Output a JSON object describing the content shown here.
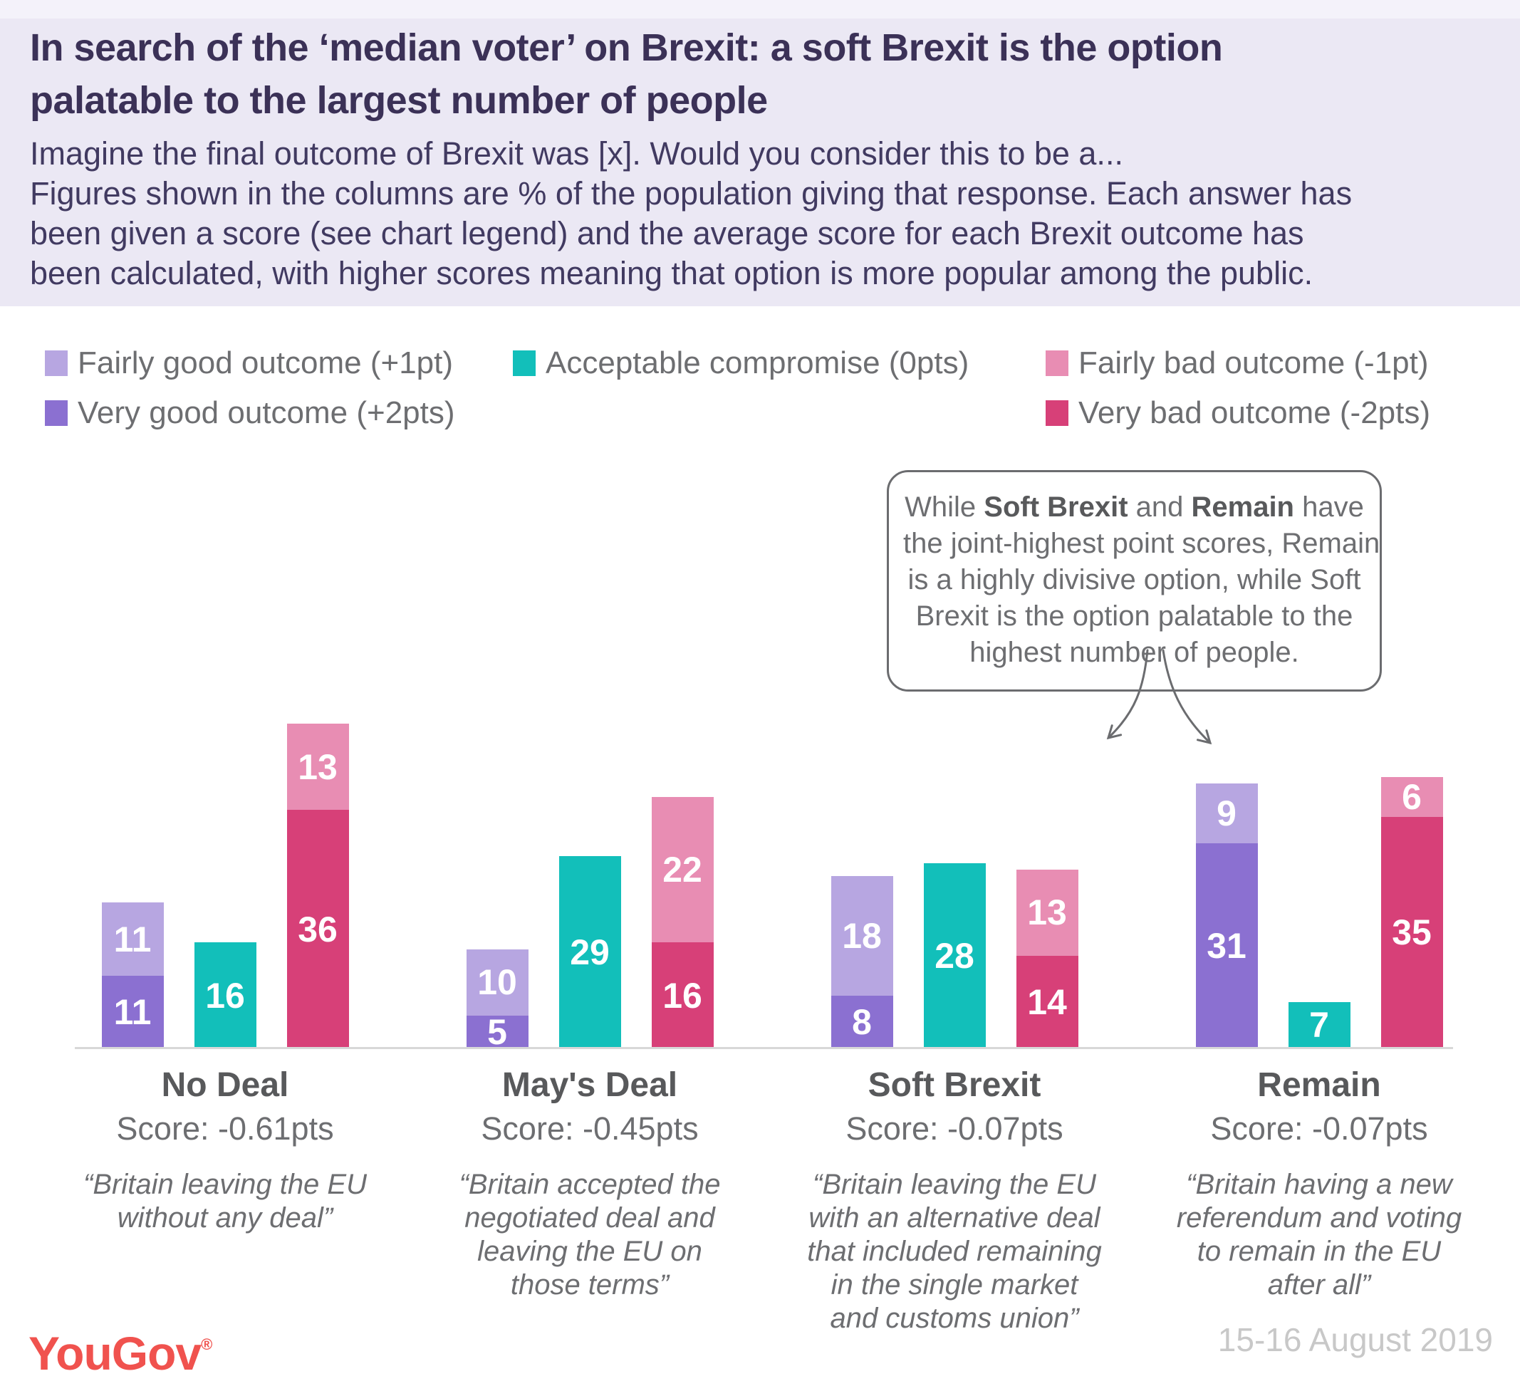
{
  "header": {
    "title_lines": [
      "In search of the ‘median voter’ on Brexit: a soft Brexit is the option",
      "palatable to the largest number of people"
    ],
    "subtitle_lines": [
      "Imagine the final outcome of Brexit was [x]. Would you consider this to be a...",
      "Figures shown in the columns are % of the population giving that response. Each answer has",
      "been given a score (see chart legend) and the average score for each Brexit outcome has",
      "been calculated, with higher scores meaning that option is more popular among the public."
    ]
  },
  "colors": {
    "fairly_good": "#b7a6e1",
    "very_good": "#8b70d1",
    "acceptable": "#12bfba",
    "fairly_bad": "#e88db3",
    "very_bad": "#d74078",
    "header_bg": "#ebe8f4",
    "title_text": "#3b3157",
    "logo_red": "#f0524e"
  },
  "legend": {
    "items": [
      {
        "key": "fairly_good",
        "label": "Fairly good outcome (+1pt)"
      },
      {
        "key": "acceptable",
        "label": "Acceptable compromise (0pts)"
      },
      {
        "key": "fairly_bad",
        "label": "Fairly bad outcome (-1pt)"
      },
      {
        "key": "very_good",
        "label": "Very good outcome (+2pts)"
      },
      {
        "key": "very_bad",
        "label": "Very bad outcome (-2pts)"
      }
    ]
  },
  "callout": {
    "lines": [
      [
        {
          "text": "While "
        },
        {
          "text": "Soft Brexit",
          "bold": true
        },
        {
          "text": " and "
        },
        {
          "text": "Remain",
          "bold": true
        },
        {
          "text": " have"
        }
      ],
      [
        {
          "text": "the joint-highest point scores, Remain"
        }
      ],
      [
        {
          "text": "is a highly divisive option, while Soft"
        }
      ],
      [
        {
          "text": "Brexit is the option palatable to the"
        }
      ],
      [
        {
          "text": "highest number of people."
        }
      ]
    ]
  },
  "chart_data": {
    "type": "bar",
    "unit": "% of population giving that response",
    "series": [
      {
        "key": "fairly_good",
        "label": "Fairly good outcome (+1pt)",
        "points": 1
      },
      {
        "key": "very_good",
        "label": "Very good outcome (+2pts)",
        "points": 2
      },
      {
        "key": "acceptable",
        "label": "Acceptable compromise (0pts)",
        "points": 0
      },
      {
        "key": "fairly_bad",
        "label": "Fairly bad outcome (-1pt)",
        "points": -1
      },
      {
        "key": "very_bad",
        "label": "Very bad outcome (-2pts)",
        "points": -2
      }
    ],
    "groups": [
      {
        "name": "No Deal",
        "score": -0.61,
        "score_label": "Score: -0.61pts",
        "quote_lines": [
          "“Britain leaving the EU",
          "without any deal”"
        ],
        "bars": [
          {
            "stack": [
              {
                "key": "fairly_good",
                "value": 11
              },
              {
                "key": "very_good",
                "value": 11
              }
            ]
          },
          {
            "stack": [
              {
                "key": "acceptable",
                "value": 16
              }
            ]
          },
          {
            "stack": [
              {
                "key": "fairly_bad",
                "value": 13
              },
              {
                "key": "very_bad",
                "value": 36
              }
            ]
          }
        ]
      },
      {
        "name": "May's Deal",
        "score": -0.45,
        "score_label": "Score: -0.45pts",
        "quote_lines": [
          "“Britain accepted the",
          "negotiated deal and",
          "leaving the EU on",
          "those terms”"
        ],
        "bars": [
          {
            "stack": [
              {
                "key": "fairly_good",
                "value": 10
              },
              {
                "key": "very_good",
                "value": 5
              }
            ]
          },
          {
            "stack": [
              {
                "key": "acceptable",
                "value": 29
              }
            ]
          },
          {
            "stack": [
              {
                "key": "fairly_bad",
                "value": 22
              },
              {
                "key": "very_bad",
                "value": 16
              }
            ]
          }
        ]
      },
      {
        "name": "Soft Brexit",
        "score": -0.07,
        "score_label": "Score: -0.07pts",
        "quote_lines": [
          "“Britain leaving the EU",
          "with an alternative deal",
          "that included remaining",
          "in the single market",
          "and customs union”"
        ],
        "bars": [
          {
            "stack": [
              {
                "key": "fairly_good",
                "value": 18
              },
              {
                "key": "very_good",
                "value": 8
              }
            ]
          },
          {
            "stack": [
              {
                "key": "acceptable",
                "value": 28
              }
            ]
          },
          {
            "stack": [
              {
                "key": "fairly_bad",
                "value": 13
              },
              {
                "key": "very_bad",
                "value": 14
              }
            ]
          }
        ]
      },
      {
        "name": "Remain",
        "score": -0.07,
        "score_label": "Score: -0.07pts",
        "quote_lines": [
          "“Britain having a new",
          "referendum and voting",
          "to remain in the EU",
          "after all”"
        ],
        "bars": [
          {
            "stack": [
              {
                "key": "fairly_good",
                "value": 9
              },
              {
                "key": "very_good",
                "value": 31
              }
            ]
          },
          {
            "stack": [
              {
                "key": "acceptable",
                "value": 7
              }
            ]
          },
          {
            "stack": [
              {
                "key": "fairly_bad",
                "value": 6
              },
              {
                "key": "very_bad",
                "value": 35
              }
            ]
          }
        ]
      }
    ]
  },
  "footer": {
    "logo_text": "YouGov",
    "logo_reg": "®",
    "date": "15-16 August 2019"
  }
}
